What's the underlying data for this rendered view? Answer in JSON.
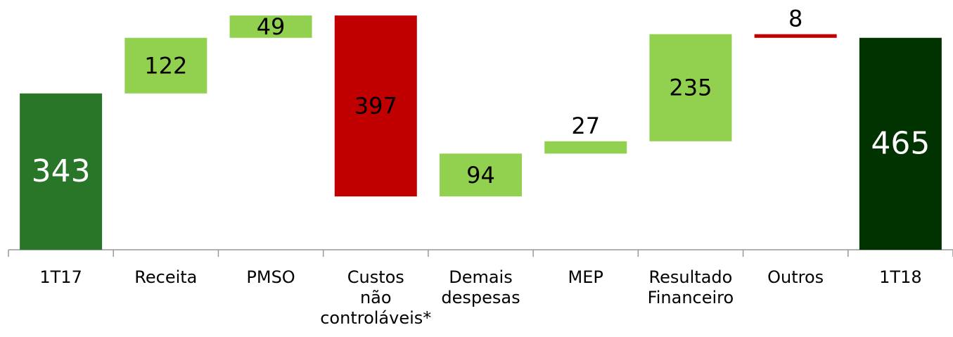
{
  "chart_data": {
    "type": "waterfall",
    "categories": [
      "1T17",
      "Receita",
      "PMSO",
      "Custos\nnão\ncontroláveis*",
      "Demais\ndespesas",
      "MEP",
      "Resultado\nFinanceiro",
      "Outros",
      "1T18"
    ],
    "measure": [
      "absolute",
      "relative",
      "relative",
      "relative",
      "relative",
      "relative",
      "relative",
      "relative",
      "total"
    ],
    "values": [
      343,
      122,
      49,
      -397,
      94,
      27,
      235,
      -8,
      465
    ],
    "value_labels": [
      "343",
      "122",
      "49",
      "397",
      "94",
      "27",
      "235",
      "8",
      "465"
    ],
    "colors": [
      "#2a7629",
      "#92d050",
      "#92d050",
      "#c00000",
      "#92d050",
      "#92d050",
      "#92d050",
      "#c00000",
      "#003300"
    ],
    "ylim": [
      0,
      548
    ]
  }
}
